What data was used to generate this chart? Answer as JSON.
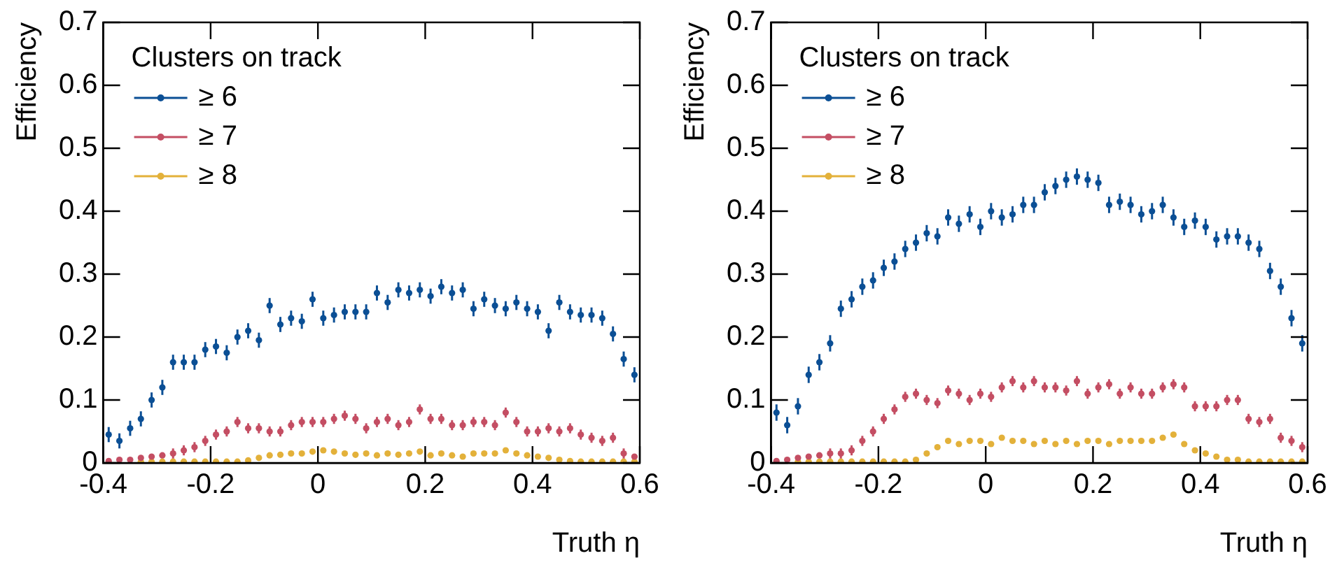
{
  "chart_data": [
    {
      "type": "scatter",
      "xlabel": "Truth η",
      "ylabel": "Efficiency",
      "legend_title": "Clusters on track",
      "legend": "top left",
      "marker": "circle",
      "xlim": [
        -0.4,
        0.6
      ],
      "ylim": [
        0,
        0.7
      ],
      "xticks": [
        -0.4,
        -0.2,
        0,
        0.2,
        0.4,
        0.6
      ],
      "yticks": [
        0,
        0.1,
        0.2,
        0.3,
        0.4,
        0.5,
        0.6,
        0.7
      ],
      "x": [
        -0.39,
        -0.37,
        -0.35,
        -0.33,
        -0.31,
        -0.29,
        -0.27,
        -0.25,
        -0.23,
        -0.21,
        -0.19,
        -0.17,
        -0.15,
        -0.13,
        -0.11,
        -0.09,
        -0.07,
        -0.05,
        -0.03,
        -0.01,
        0.01,
        0.03,
        0.05,
        0.07,
        0.09,
        0.11,
        0.13,
        0.15,
        0.17,
        0.19,
        0.21,
        0.23,
        0.25,
        0.27,
        0.29,
        0.31,
        0.33,
        0.35,
        0.37,
        0.39,
        0.41,
        0.43,
        0.45,
        0.47,
        0.49,
        0.51,
        0.53,
        0.55,
        0.57,
        0.59
      ],
      "series": [
        {
          "name": "≥ 6",
          "color": "#0b4f95",
          "values": [
            0.045,
            0.035,
            0.055,
            0.07,
            0.1,
            0.12,
            0.16,
            0.16,
            0.16,
            0.18,
            0.185,
            0.175,
            0.2,
            0.21,
            0.195,
            0.25,
            0.22,
            0.23,
            0.225,
            0.26,
            0.23,
            0.235,
            0.24,
            0.24,
            0.24,
            0.27,
            0.255,
            0.275,
            0.27,
            0.275,
            0.265,
            0.28,
            0.27,
            0.275,
            0.245,
            0.26,
            0.25,
            0.245,
            0.255,
            0.245,
            0.24,
            0.21,
            0.255,
            0.24,
            0.235,
            0.235,
            0.23,
            0.205,
            0.165,
            0.14
          ],
          "errors": [
            0.012,
            0.012,
            0.012,
            0.012,
            0.012,
            0.012,
            0.012,
            0.012,
            0.012,
            0.012,
            0.012,
            0.012,
            0.012,
            0.012,
            0.012,
            0.012,
            0.012,
            0.012,
            0.012,
            0.012,
            0.012,
            0.012,
            0.012,
            0.012,
            0.012,
            0.012,
            0.012,
            0.012,
            0.012,
            0.012,
            0.012,
            0.012,
            0.012,
            0.012,
            0.012,
            0.012,
            0.012,
            0.012,
            0.012,
            0.012,
            0.012,
            0.012,
            0.012,
            0.012,
            0.012,
            0.012,
            0.012,
            0.012,
            0.012,
            0.012
          ]
        },
        {
          "name": "≥ 7",
          "color": "#c44e63",
          "values": [
            0.003,
            0.005,
            0.005,
            0.008,
            0.01,
            0.012,
            0.015,
            0.02,
            0.025,
            0.035,
            0.045,
            0.05,
            0.065,
            0.055,
            0.055,
            0.05,
            0.05,
            0.06,
            0.065,
            0.065,
            0.065,
            0.07,
            0.075,
            0.07,
            0.055,
            0.065,
            0.07,
            0.06,
            0.065,
            0.085,
            0.07,
            0.07,
            0.06,
            0.06,
            0.065,
            0.065,
            0.06,
            0.08,
            0.065,
            0.05,
            0.05,
            0.055,
            0.05,
            0.055,
            0.045,
            0.04,
            0.035,
            0.04,
            0.015,
            0.01
          ],
          "errors": [
            null,
            null,
            null,
            null,
            null,
            null,
            0.008,
            0.008,
            0.008,
            0.008,
            0.008,
            0.008,
            0.008,
            0.008,
            0.008,
            0.008,
            0.008,
            0.008,
            0.008,
            0.008,
            0.008,
            0.008,
            0.008,
            0.008,
            0.008,
            0.008,
            0.008,
            0.008,
            0.008,
            0.008,
            0.008,
            0.008,
            0.008,
            0.008,
            0.008,
            0.008,
            0.008,
            0.008,
            0.008,
            0.008,
            0.008,
            0.008,
            0.008,
            0.008,
            0.008,
            0.008,
            0.008,
            0.008,
            0.008,
            null
          ]
        },
        {
          "name": "≥ 8",
          "color": "#e3b13a",
          "values": [
            null,
            null,
            null,
            0.002,
            0.002,
            0.002,
            0.002,
            0.002,
            0.002,
            0.002,
            0.002,
            0.002,
            0.002,
            0.004,
            0.008,
            0.012,
            0.013,
            0.015,
            0.015,
            0.018,
            0.02,
            0.018,
            0.015,
            0.013,
            0.015,
            0.012,
            0.015,
            0.013,
            0.015,
            0.018,
            0.012,
            0.015,
            0.012,
            0.01,
            0.015,
            0.015,
            0.015,
            0.02,
            0.015,
            0.012,
            0.01,
            0.008,
            0.005,
            0.003,
            0.002,
            0.002,
            0.002,
            0.002,
            0.002,
            0.002
          ]
        }
      ]
    },
    {
      "type": "scatter",
      "xlabel": "Truth η",
      "ylabel": "Efficiency",
      "legend_title": "Clusters on track",
      "legend": "top left",
      "marker": "circle",
      "xlim": [
        -0.4,
        0.6
      ],
      "ylim": [
        0,
        0.7
      ],
      "xticks": [
        -0.4,
        -0.2,
        0,
        0.2,
        0.4,
        0.6
      ],
      "yticks": [
        0,
        0.1,
        0.2,
        0.3,
        0.4,
        0.5,
        0.6,
        0.7
      ],
      "x": [
        -0.39,
        -0.37,
        -0.35,
        -0.33,
        -0.31,
        -0.29,
        -0.27,
        -0.25,
        -0.23,
        -0.21,
        -0.19,
        -0.17,
        -0.15,
        -0.13,
        -0.11,
        -0.09,
        -0.07,
        -0.05,
        -0.03,
        -0.01,
        0.01,
        0.03,
        0.05,
        0.07,
        0.09,
        0.11,
        0.13,
        0.15,
        0.17,
        0.19,
        0.21,
        0.23,
        0.25,
        0.27,
        0.29,
        0.31,
        0.33,
        0.35,
        0.37,
        0.39,
        0.41,
        0.43,
        0.45,
        0.47,
        0.49,
        0.51,
        0.53,
        0.55,
        0.57,
        0.59
      ],
      "series": [
        {
          "name": "≥ 6",
          "color": "#0b4f95",
          "values": [
            0.08,
            0.06,
            0.09,
            0.14,
            0.16,
            0.19,
            0.245,
            0.26,
            0.28,
            0.29,
            0.31,
            0.32,
            0.34,
            0.35,
            0.365,
            0.36,
            0.39,
            0.38,
            0.395,
            0.375,
            0.4,
            0.39,
            0.395,
            0.41,
            0.41,
            0.43,
            0.44,
            0.45,
            0.455,
            0.45,
            0.445,
            0.41,
            0.415,
            0.41,
            0.395,
            0.4,
            0.41,
            0.39,
            0.375,
            0.385,
            0.375,
            0.355,
            0.36,
            0.36,
            0.35,
            0.34,
            0.305,
            0.28,
            0.23,
            0.19
          ],
          "errors": [
            0.013,
            0.013,
            0.013,
            0.013,
            0.013,
            0.013,
            0.013,
            0.013,
            0.013,
            0.013,
            0.013,
            0.013,
            0.013,
            0.013,
            0.013,
            0.013,
            0.013,
            0.013,
            0.013,
            0.013,
            0.013,
            0.013,
            0.013,
            0.013,
            0.013,
            0.013,
            0.013,
            0.013,
            0.013,
            0.013,
            0.013,
            0.013,
            0.013,
            0.013,
            0.013,
            0.013,
            0.013,
            0.013,
            0.013,
            0.013,
            0.013,
            0.013,
            0.013,
            0.013,
            0.013,
            0.013,
            0.013,
            0.013,
            0.013,
            0.013
          ]
        },
        {
          "name": "≥ 7",
          "color": "#c44e63",
          "values": [
            0.003,
            0.005,
            0.008,
            0.01,
            0.012,
            0.015,
            0.015,
            0.02,
            0.035,
            0.05,
            0.07,
            0.085,
            0.105,
            0.11,
            0.1,
            0.095,
            0.115,
            0.11,
            0.1,
            0.11,
            0.105,
            0.12,
            0.13,
            0.12,
            0.13,
            0.12,
            0.12,
            0.115,
            0.13,
            0.11,
            0.12,
            0.125,
            0.11,
            0.12,
            0.11,
            0.11,
            0.12,
            0.125,
            0.12,
            0.09,
            0.09,
            0.09,
            0.1,
            0.1,
            0.07,
            0.065,
            0.07,
            0.04,
            0.035,
            0.025
          ],
          "errors": [
            null,
            null,
            null,
            null,
            null,
            0.008,
            0.008,
            0.008,
            0.008,
            0.008,
            0.008,
            0.008,
            0.008,
            0.008,
            0.008,
            0.008,
            0.008,
            0.008,
            0.008,
            0.008,
            0.008,
            0.008,
            0.008,
            0.008,
            0.008,
            0.008,
            0.008,
            0.008,
            0.008,
            0.008,
            0.008,
            0.008,
            0.008,
            0.008,
            0.008,
            0.008,
            0.008,
            0.008,
            0.008,
            0.008,
            0.008,
            0.008,
            0.008,
            0.008,
            0.008,
            0.008,
            0.008,
            0.008,
            0.008,
            0.008
          ]
        },
        {
          "name": "≥ 8",
          "color": "#e3b13a",
          "values": [
            null,
            null,
            0.002,
            0.002,
            0.002,
            0.002,
            0.002,
            0.002,
            0.002,
            0.002,
            0.002,
            0.002,
            0.002,
            0.005,
            0.015,
            0.025,
            0.035,
            0.03,
            0.035,
            0.035,
            0.03,
            0.04,
            0.035,
            0.035,
            0.03,
            0.035,
            0.03,
            0.035,
            0.03,
            0.035,
            0.035,
            0.03,
            0.035,
            0.035,
            0.035,
            0.035,
            0.04,
            0.045,
            0.03,
            0.02,
            0.015,
            0.01,
            0.005,
            0.005,
            0.002,
            0.002,
            0.002,
            0.002,
            0.002,
            0.002
          ]
        }
      ]
    }
  ]
}
